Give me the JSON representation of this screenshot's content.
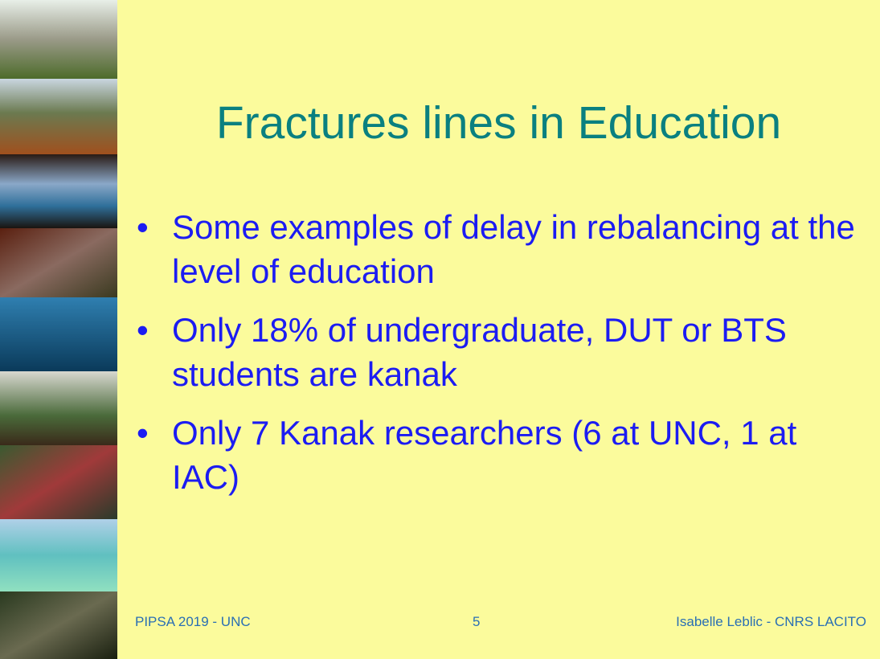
{
  "slide": {
    "title": "Fractures lines in Education",
    "bullets": [
      "Some examples of delay in rebalancing at the level of education",
      "Only 18% of undergraduate, DUT or BTS students are kanak",
      "Only 7 Kanak researchers (6 at UNC, 1 at IAC)"
    ],
    "footer": {
      "left": "PIPSA 2019 - UNC",
      "center": "5",
      "right": "Isabelle Leblic - CNRS LACITO"
    }
  }
}
